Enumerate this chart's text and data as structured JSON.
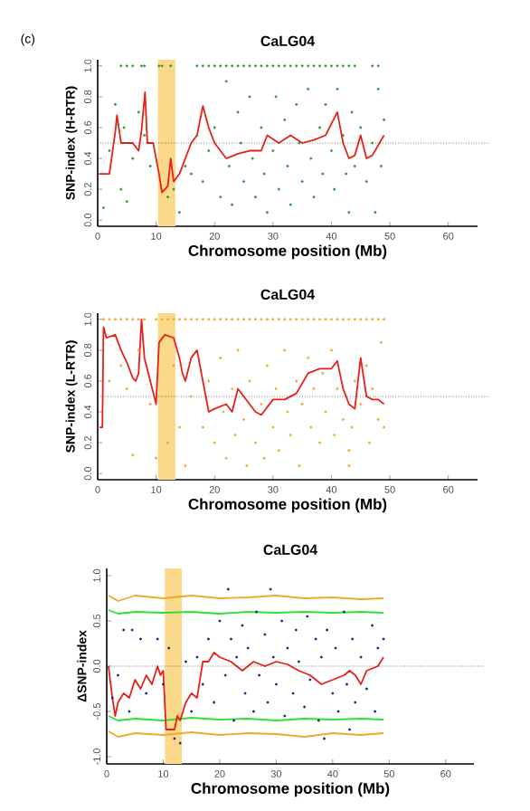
{
  "chart_data": [
    {
      "type": "scatter",
      "title": "CaLG04",
      "xlabel": "Chromosome position (Mb)",
      "ylabel": "SNP-index (H-RTR)",
      "annotations": [
        "(c)"
      ],
      "xlim": [
        0,
        65
      ],
      "ylim": [
        -0.04,
        1.04
      ],
      "xticks": [
        0,
        10,
        20,
        30,
        40,
        50,
        60
      ],
      "yticks": [
        {
          "value": 0,
          "label": "0.0"
        },
        0.2,
        0.4,
        0.6,
        0.8,
        {
          "value": 1,
          "label": "1.0"
        }
      ],
      "ref_lines": [
        {
          "axis": "y",
          "value": 0.5,
          "line_style": "dotted",
          "color": "#333333"
        }
      ],
      "bands": [
        {
          "axis": "x",
          "from": 10.3,
          "to": 13.3,
          "color": "#fad98a"
        }
      ],
      "series": [
        {
          "marker": "circle",
          "color": "#2e9b2e",
          "x": [
            4,
            5,
            6,
            7.5,
            8,
            10.5,
            11,
            12.5,
            17,
            18,
            19,
            20,
            21,
            22,
            23,
            24,
            25,
            26,
            27,
            28,
            29,
            30,
            31,
            32,
            33,
            34,
            35,
            36,
            37,
            38,
            39,
            40,
            41,
            42,
            43,
            44,
            47,
            48,
            1,
            2,
            3,
            3.5,
            4,
            4.5,
            5,
            6,
            7,
            8,
            9,
            12,
            13,
            14,
            15,
            16,
            17,
            18,
            19,
            20,
            21,
            22,
            22.5,
            23,
            24,
            24.5,
            25,
            26,
            26.5,
            27,
            28,
            28.5,
            29,
            30,
            30.5,
            31,
            32,
            32.5,
            33,
            34,
            34.5,
            35,
            36,
            36.5,
            37,
            38,
            38.5,
            39,
            40,
            40.5,
            41,
            42,
            42.5,
            43,
            43.5,
            44,
            45,
            46,
            47,
            47.5,
            48,
            48.5,
            49
          ],
          "values": [
            1,
            1,
            1,
            1,
            1,
            1,
            1,
            1,
            1,
            1,
            1,
            1,
            1,
            1,
            1,
            1,
            1,
            1,
            1,
            1,
            1,
            1,
            1,
            1,
            1,
            1,
            1,
            1,
            1,
            1,
            1,
            1,
            1,
            1,
            1,
            1,
            1,
            1,
            0.08,
            0.45,
            0.75,
            0.62,
            0.2,
            0.6,
            0.12,
            0.4,
            0.7,
            0.55,
            0.35,
            0.15,
            0.2,
            0.05,
            0.35,
            0.3,
            0.55,
            0.25,
            0.45,
            0.6,
            0.15,
            0.9,
            0.35,
            0.1,
            0.7,
            0.5,
            0.25,
            0.8,
            0.4,
            0.15,
            0.6,
            0.3,
            0.05,
            0.45,
            0.8,
            0.2,
            0.65,
            0.35,
            0.1,
            0.75,
            0.5,
            0.25,
            0.85,
            0.4,
            0.15,
            0.6,
            0.3,
            0.75,
            0.45,
            0.2,
            0.85,
            0.55,
            0.3,
            0.05,
            0.7,
            0.35,
            0.6,
            0.25,
            0.5,
            0.05,
            0.85,
            0.35,
            0.65
          ]
        },
        {
          "type": "line",
          "color": "#e8201a",
          "x": [
            0.2,
            2,
            3,
            3.3,
            4,
            6,
            7,
            7.5,
            8.1,
            8.5,
            9.5,
            10.5,
            11,
            12,
            12.5,
            13,
            14,
            15,
            16,
            17,
            18,
            19,
            20,
            22,
            24,
            26,
            28,
            29,
            31,
            33,
            35,
            37,
            39,
            41,
            42,
            43,
            44,
            45,
            46,
            47,
            49
          ],
          "values": [
            0.3,
            0.3,
            0.57,
            0.68,
            0.5,
            0.5,
            0.45,
            0.58,
            0.83,
            0.5,
            0.5,
            0.3,
            0.18,
            0.22,
            0.4,
            0.25,
            0.3,
            0.4,
            0.5,
            0.55,
            0.74,
            0.6,
            0.5,
            0.4,
            0.43,
            0.45,
            0.45,
            0.55,
            0.5,
            0.55,
            0.5,
            0.52,
            0.55,
            0.7,
            0.5,
            0.4,
            0.42,
            0.55,
            0.4,
            0.42,
            0.55
          ]
        }
      ]
    },
    {
      "type": "scatter",
      "title": "CaLG04",
      "xlabel": "Chromosome position (Mb)",
      "ylabel": "SNP-index (L-RTR)",
      "xlim": [
        0,
        65
      ],
      "ylim": [
        -0.04,
        1.04
      ],
      "xticks": [
        0,
        10,
        20,
        30,
        40,
        50,
        60
      ],
      "yticks": [
        {
          "value": 0,
          "label": "0.0"
        },
        0.2,
        0.4,
        0.6,
        0.8,
        {
          "value": 1,
          "label": "1.0"
        }
      ],
      "ref_lines": [
        {
          "axis": "y",
          "value": 0.5,
          "line_style": "dotted",
          "color": "#333333"
        }
      ],
      "bands": [
        {
          "axis": "x",
          "from": 10.3,
          "to": 13.3,
          "color": "#fad98a"
        }
      ],
      "series": [
        {
          "marker": "circle",
          "color": "#f0a830",
          "x": [
            1,
            2,
            3,
            4,
            5,
            6,
            7,
            8,
            10,
            11,
            12,
            13,
            14,
            15,
            16,
            17,
            18,
            19,
            20,
            21,
            22,
            23,
            24,
            25,
            26,
            27,
            28,
            29,
            30,
            31,
            32,
            33,
            34,
            35,
            36,
            37,
            38,
            39,
            40,
            41,
            42,
            43,
            44,
            45,
            46,
            47,
            48,
            49,
            2,
            4,
            5,
            6,
            7,
            9,
            10,
            12,
            13,
            14,
            15,
            16,
            18,
            19,
            20,
            21,
            21.5,
            22,
            23,
            23.5,
            24,
            25,
            25.5,
            26,
            27,
            28,
            28.5,
            29,
            30,
            30.5,
            31,
            32,
            32.5,
            33,
            34,
            34.5,
            35,
            36,
            36.5,
            37,
            38,
            38.5,
            39,
            40,
            40.5,
            41,
            42,
            43,
            43,
            43.5,
            44,
            45,
            46,
            46.5,
            47,
            48,
            48.5,
            49
          ],
          "values": [
            1,
            1,
            1,
            1,
            1,
            1,
            1,
            1,
            1,
            1,
            1,
            1,
            1,
            1,
            1,
            1,
            1,
            1,
            1,
            1,
            1,
            1,
            1,
            1,
            1,
            1,
            1,
            1,
            1,
            1,
            1,
            1,
            1,
            1,
            1,
            1,
            1,
            1,
            1,
            1,
            1,
            1,
            1,
            1,
            1,
            1,
            1,
            1,
            0.6,
            0.7,
            0.55,
            0.12,
            0.8,
            0.45,
            0.1,
            0.2,
            0.7,
            0.3,
            0.05,
            0.5,
            0.3,
            0.6,
            0.2,
            0.75,
            0.4,
            0.1,
            0.55,
            0.25,
            0.8,
            0.35,
            0.05,
            0.6,
            0.2,
            0.45,
            0.1,
            0.7,
            0.3,
            0.55,
            0.15,
            0.8,
            0.4,
            0.25,
            0.6,
            0.05,
            0.45,
            0.75,
            0.3,
            0.55,
            0.2,
            0.65,
            0.4,
            0.8,
            0.25,
            0.55,
            0.35,
            0.05,
            0.15,
            0.3,
            0.6,
            0.45,
            0.7,
            0.2,
            0.55,
            0.35,
            0.85,
            0.3
          ]
        },
        {
          "type": "line",
          "color": "#e8201a",
          "x": [
            0.3,
            0.8,
            1,
            1.5,
            3,
            4,
            5,
            6,
            6.5,
            7,
            7.5,
            8,
            9,
            10,
            10.5,
            11.5,
            13,
            14,
            14.5,
            15,
            16,
            17,
            18,
            19,
            20,
            22,
            23,
            24,
            26,
            27,
            28,
            30,
            32,
            34,
            36,
            38,
            40,
            41,
            42,
            43,
            44,
            45,
            46,
            47,
            48,
            49
          ],
          "values": [
            0.3,
            0.3,
            0.95,
            0.88,
            0.9,
            0.8,
            0.72,
            0.62,
            0.6,
            0.65,
            1,
            0.75,
            0.6,
            0.45,
            0.85,
            0.9,
            0.88,
            0.75,
            0.65,
            0.6,
            0.75,
            0.8,
            0.6,
            0.4,
            0.42,
            0.45,
            0.4,
            0.55,
            0.45,
            0.4,
            0.38,
            0.48,
            0.48,
            0.52,
            0.65,
            0.68,
            0.68,
            0.73,
            0.55,
            0.45,
            0.42,
            0.75,
            0.5,
            0.48,
            0.48,
            0.45
          ]
        }
      ]
    },
    {
      "type": "scatter",
      "title": "CaLG04",
      "xlabel": "Chromosome position (Mb)",
      "ylabel": "ΔSNP-index",
      "xlim": [
        0,
        65
      ],
      "ylim": [
        -1.08,
        1.08
      ],
      "xticks": [
        0,
        10,
        20,
        30,
        40,
        50,
        60
      ],
      "yticks": [
        {
          "value": -1,
          "label": "-1.0"
        },
        -0.5,
        {
          "value": 0,
          "label": "0.0"
        },
        0.5,
        {
          "value": 1,
          "label": "1.0"
        }
      ],
      "ref_lines": [
        {
          "axis": "y",
          "value": 0,
          "line_style": "dotted",
          "color": "#333333"
        }
      ],
      "bands": [
        {
          "axis": "x",
          "from": 10.3,
          "to": 13.3,
          "color": "#fad98a"
        }
      ],
      "series": [
        {
          "marker": "circle",
          "color": "#1a237e",
          "x": [
            1,
            2,
            3,
            4,
            4.5,
            6,
            7,
            9,
            10,
            11,
            12,
            13,
            14,
            15,
            16,
            17,
            18,
            19,
            20,
            21,
            21.5,
            22,
            22.5,
            23,
            24,
            24.5,
            25,
            26,
            26.5,
            27,
            28,
            28.5,
            29,
            29.5,
            30,
            31,
            31.5,
            32,
            33,
            33.5,
            34,
            35,
            35.5,
            36,
            37,
            37.5,
            38,
            38.5,
            39,
            40,
            40.5,
            41,
            42,
            42.5,
            43,
            43.5,
            44,
            45,
            46,
            47,
            47.5,
            48,
            49
          ],
          "values": [
            -0.35,
            -0.1,
            0.4,
            -0.5,
            0.4,
            0.3,
            -0.3,
            0.3,
            -0.2,
            0.2,
            -0.8,
            -0.85,
            0.05,
            -0.5,
            0.1,
            -0.2,
            0.3,
            -0.4,
            0.5,
            -0.1,
            0.85,
            0.3,
            -0.6,
            0.1,
            0.45,
            -0.3,
            0.2,
            -0.5,
            0.6,
            -0.1,
            0.35,
            -0.4,
            0.85,
            0.1,
            -0.2,
            0.5,
            -0.55,
            0.2,
            -0.3,
            0.4,
            0.05,
            -0.45,
            0.55,
            -0.15,
            0.3,
            -0.6,
            0.1,
            -0.8,
            0.4,
            -0.3,
            0.2,
            -0.5,
            0.6,
            -0.2,
            -0.7,
            0.3,
            -0.4,
            0.1,
            -0.25,
            0.45,
            -0.5,
            0.2,
            0.3
          ]
        },
        {
          "type": "line",
          "color": "#f0a830",
          "x": [
            0.3,
            2,
            5,
            10,
            15,
            20,
            25,
            30,
            35,
            40,
            45,
            49
          ],
          "values": [
            0.78,
            0.72,
            0.78,
            0.75,
            0.78,
            0.75,
            0.76,
            0.78,
            0.75,
            0.76,
            0.74,
            0.75
          ]
        },
        {
          "type": "line",
          "color": "#f0a830",
          "x": [
            0.3,
            2,
            5,
            10,
            15,
            20,
            25,
            30,
            35,
            40,
            45,
            49
          ],
          "values": [
            -0.72,
            -0.78,
            -0.74,
            -0.76,
            -0.73,
            -0.76,
            -0.74,
            -0.75,
            -0.78,
            -0.74,
            -0.76,
            -0.74
          ]
        },
        {
          "type": "line",
          "color": "#33dd33",
          "x": [
            0.3,
            2,
            5,
            10,
            15,
            20,
            25,
            30,
            35,
            40,
            45,
            49
          ],
          "values": [
            0.62,
            0.58,
            0.6,
            0.59,
            0.6,
            0.58,
            0.6,
            0.59,
            0.6,
            0.59,
            0.6,
            0.59
          ]
        },
        {
          "type": "line",
          "color": "#33dd33",
          "x": [
            0.3,
            2,
            5,
            10,
            15,
            20,
            25,
            30,
            35,
            40,
            45,
            49
          ],
          "values": [
            -0.55,
            -0.6,
            -0.58,
            -0.6,
            -0.57,
            -0.59,
            -0.58,
            -0.6,
            -0.58,
            -0.59,
            -0.58,
            -0.59
          ]
        },
        {
          "type": "line",
          "color": "#e8201a",
          "x": [
            0.3,
            1,
            1.5,
            2,
            3,
            4,
            5,
            6,
            7,
            8,
            9,
            9.5,
            10,
            10.5,
            12,
            12.5,
            13,
            14,
            15,
            16,
            17,
            18,
            19,
            20,
            22,
            24,
            26,
            28,
            30,
            32,
            34,
            36,
            38,
            40,
            42,
            43,
            44,
            45,
            46,
            48,
            49
          ],
          "values": [
            0,
            -0.35,
            -0.55,
            -0.4,
            -0.3,
            -0.35,
            -0.15,
            -0.25,
            -0.1,
            -0.2,
            0,
            -0.1,
            -0.05,
            -0.7,
            -0.7,
            -0.55,
            -0.6,
            -0.4,
            -0.3,
            -0.35,
            0.05,
            0.05,
            0.15,
            0.1,
            0.05,
            -0.05,
            0.05,
            0,
            0.05,
            0.02,
            -0.05,
            -0.1,
            -0.2,
            -0.15,
            -0.1,
            -0.05,
            -0.1,
            -0.2,
            -0.05,
            0,
            0.1
          ]
        }
      ]
    }
  ]
}
